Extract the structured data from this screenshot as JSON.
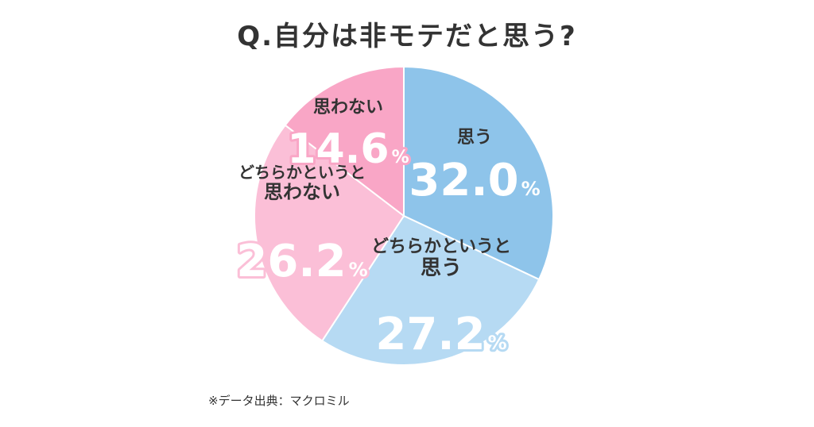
{
  "title": "Q.自分は非モテだと思う?",
  "source": "※データ出典：マクロミル",
  "chart_data": {
    "type": "pie",
    "unit": "%",
    "slices": [
      {
        "label": "思う",
        "value": 32.0,
        "value_text": "32.0",
        "color": "#8ec4ea"
      },
      {
        "label": "どちらかというと\n思う",
        "value": 27.2,
        "value_text": "27.2",
        "color": "#b6daf3"
      },
      {
        "label": "どちらかというと\n思わない",
        "value": 26.2,
        "value_text": "26.2",
        "color": "#fbbfd7"
      },
      {
        "label": "思わない",
        "value": 14.6,
        "value_text": "14.6",
        "color": "#f9a6c6"
      }
    ]
  }
}
